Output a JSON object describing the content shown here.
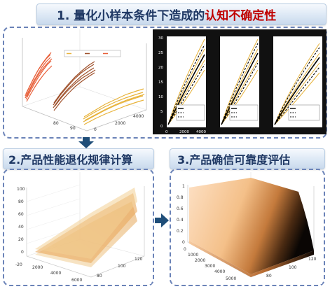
{
  "headings": {
    "main_prefix": "1. 量化小样本条件下造成的",
    "main_highlight": "认知不确定性",
    "left": "2.产品性能退化规律计算",
    "right": "3.产品确信可靠度评估"
  },
  "surface_3d": {
    "z_ticks": [
      "100",
      "80",
      "60",
      "40",
      "20",
      "0",
      "-20"
    ],
    "y_ticks": [
      "2000",
      "4000",
      "6000"
    ],
    "x_ticks": [
      "80",
      "100",
      "120"
    ]
  },
  "reliability_3d": {
    "z_ticks": [
      "1",
      "0.8",
      "0.6",
      "0.4",
      "0.2",
      "0"
    ],
    "y_ticks": [
      "0",
      "1000",
      "2000",
      "3000",
      "4000",
      "5000"
    ],
    "x_ticks": [
      "80",
      "100",
      "120"
    ]
  },
  "top_3d": {
    "y_ticks": [
      "0",
      "2000",
      "4000"
    ],
    "x_ticks": [
      "80",
      "90"
    ]
  },
  "small_charts": {
    "y_ticks": [
      "30",
      "25",
      "20",
      "15",
      "10",
      "5",
      "0"
    ],
    "x_ticks": [
      "0",
      "2000",
      "4000"
    ]
  },
  "colors": {
    "orange": "#e8603a",
    "brown": "#a0522d",
    "gold": "#e8b33a",
    "arrow": "#1f4e79"
  },
  "icons": {
    "down_arrow": "down-arrow-icon",
    "right_arrow": "right-arrow-icon"
  }
}
